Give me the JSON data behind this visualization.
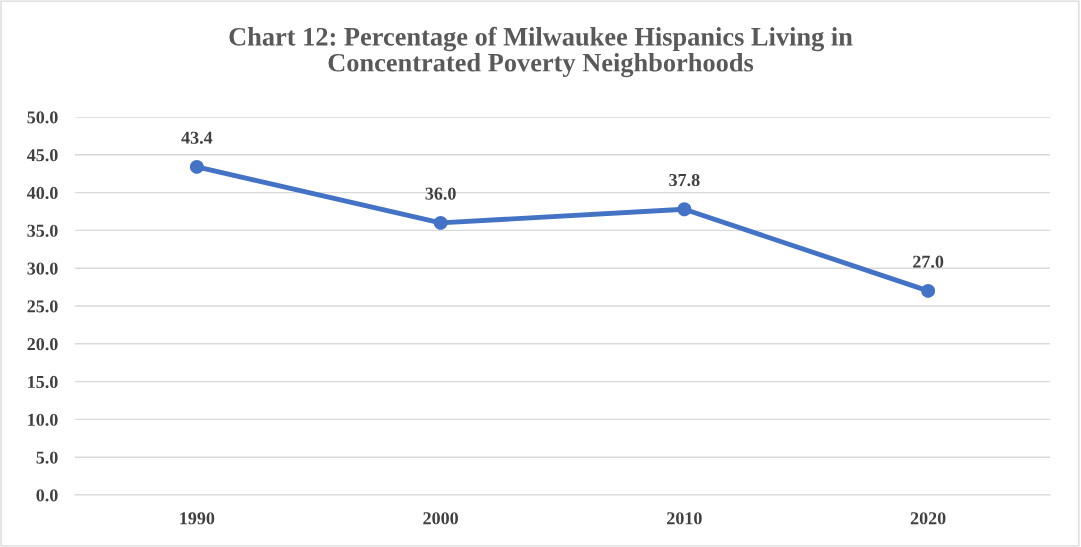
{
  "chart_data": {
    "type": "line",
    "title": "Chart 12: Percentage of Milwaukee Hispanics Living in\nConcentrated Poverty Neighborhoods",
    "categories": [
      "1990",
      "2000",
      "2010",
      "2020"
    ],
    "series": [
      {
        "color": "#4472c4",
        "values": [
          43.4,
          36.0,
          37.8,
          27.0
        ],
        "value_labels": [
          "43.4",
          "36.0",
          "37.8",
          "27.0"
        ]
      }
    ],
    "ylim": [
      0,
      50
    ],
    "yticks": [
      {
        "value": 0,
        "label": "0.0"
      },
      {
        "value": 5,
        "label": "5.0"
      },
      {
        "value": 10,
        "label": "10.0"
      },
      {
        "value": 15,
        "label": "15.0"
      },
      {
        "value": 20,
        "label": "20.0"
      },
      {
        "value": 25,
        "label": "25.0"
      },
      {
        "value": 30,
        "label": "30.0"
      },
      {
        "value": 35,
        "label": "35.0"
      },
      {
        "value": 40,
        "label": "40.0"
      },
      {
        "value": 45,
        "label": "45.0"
      },
      {
        "value": 50,
        "label": "50.0"
      }
    ],
    "grid": "y",
    "marker": "circle",
    "line_style": "solid",
    "legend": false
  }
}
